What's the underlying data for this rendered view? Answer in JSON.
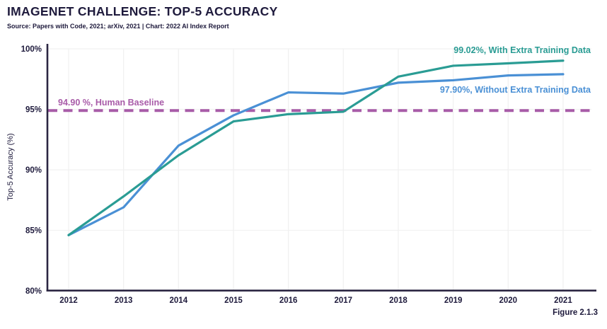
{
  "header": {
    "title": "IMAGENET CHALLENGE: TOP-5 ACCURACY",
    "subtitle": "Source: Papers with Code, 2021; arXiv, 2021 | Chart: 2022 AI Index Report"
  },
  "figure_label": "Figure 2.1.3",
  "colors": {
    "with_extra": "#2a9c94",
    "without_extra": "#4a90d5",
    "baseline": "#a85ca8",
    "ink": "#1e1a3c",
    "axis": "#2b2642",
    "grid": "#f1f1f1"
  },
  "chart_data": {
    "type": "line",
    "title": "IMAGENET CHALLENGE: TOP-5 ACCURACY",
    "xlabel": "",
    "ylabel": "Top-5 Accuracy (%)",
    "x": [
      "2012",
      "2013",
      "2014",
      "2015",
      "2016",
      "2017",
      "2018",
      "2019",
      "2020",
      "2021"
    ],
    "series": [
      {
        "name": "With Extra Training Data",
        "label": "99.02%, With Extra Training Data",
        "color": "#2a9c94",
        "values": [
          84.6,
          87.8,
          91.2,
          94.0,
          94.6,
          94.8,
          97.7,
          98.6,
          98.8,
          99.02
        ]
      },
      {
        "name": "Without Extra Training Data",
        "label": "97.90%, Without Extra Training Data",
        "color": "#4a90d5",
        "values": [
          84.6,
          86.9,
          92.0,
          94.5,
          96.4,
          96.3,
          97.2,
          97.4,
          97.8,
          97.9
        ]
      }
    ],
    "baseline": {
      "value": 94.9,
      "label": "94.90 %, Human Baseline",
      "color": "#a85ca8",
      "style": "dashed"
    },
    "ylim": [
      80,
      100.5
    ],
    "yticks": [
      {
        "value": 80,
        "label": "80%"
      },
      {
        "value": 85,
        "label": "85%"
      },
      {
        "value": 90,
        "label": "90%"
      },
      {
        "value": 95,
        "label": "95%"
      },
      {
        "value": 100,
        "label": "100%"
      }
    ],
    "grid": true,
    "legend_position": "inline-annotations"
  }
}
